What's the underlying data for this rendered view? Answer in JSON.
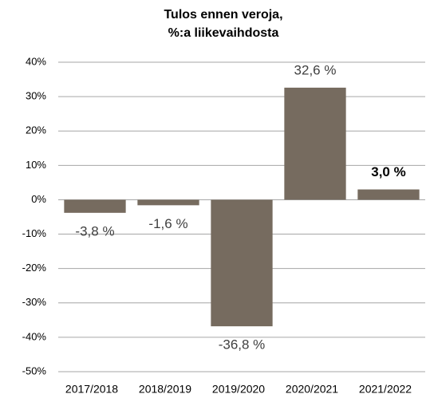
{
  "chart_data": {
    "type": "bar",
    "title": [
      "Tulos ennen veroja,",
      "%:a liikevaihdosta"
    ],
    "categories": [
      "2017/2018",
      "2018/2019",
      "2019/2020",
      "2020/2021",
      "2021/2022"
    ],
    "values": [
      -3.8,
      -1.6,
      -36.8,
      32.6,
      3.0
    ],
    "value_labels": [
      "-3,8 %",
      "-1,6 %",
      "-36,8 %",
      "32,6 %",
      "3,0 %"
    ],
    "color": "#766b5f",
    "ylim": [
      -50,
      40
    ],
    "yticks": [
      {
        "value": -50,
        "label": "-50%"
      },
      {
        "value": -40,
        "label": "-40%"
      },
      {
        "value": -30,
        "label": "-30%"
      },
      {
        "value": -20,
        "label": "-20%"
      },
      {
        "value": -10,
        "label": "-10%"
      },
      {
        "value": 0,
        "label": "0%"
      },
      {
        "value": 10,
        "label": "10%"
      },
      {
        "value": 20,
        "label": "20%"
      },
      {
        "value": 30,
        "label": "30%"
      },
      {
        "value": 40,
        "label": "40%"
      }
    ],
    "grid": true
  }
}
